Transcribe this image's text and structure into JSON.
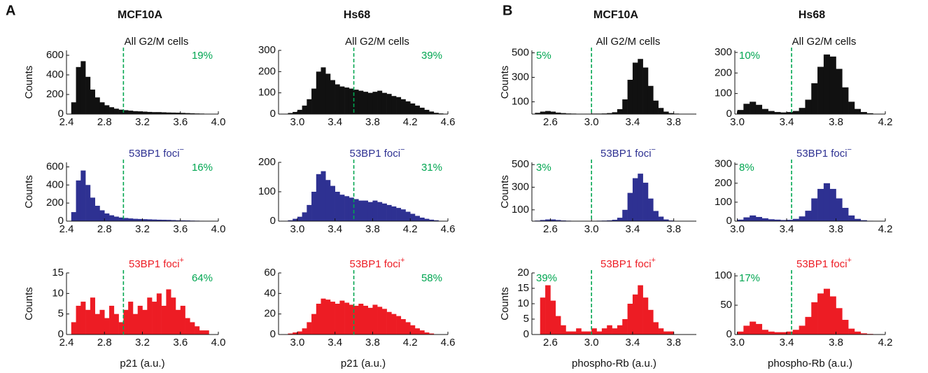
{
  "panels": [
    {
      "label": "A",
      "columns": [
        "MCF10A",
        "Hs68"
      ],
      "xlabel": "p21 (a.u.)",
      "ylabel": "Counts"
    },
    {
      "label": "B",
      "columns": [
        "MCF10A",
        "Hs68"
      ],
      "xlabel": "phospho-Rb (a.u.)",
      "ylabel": "Counts"
    }
  ],
  "chart_data": [
    {
      "type": "histogram",
      "title": "All G2/M cells",
      "annotation": "19%",
      "annotation_corner": "right",
      "color": "#111111",
      "threshold": 3.0,
      "threshold_color": "#00a651",
      "xlim": [
        2.4,
        4.0
      ],
      "xticks": [
        2.4,
        2.8,
        3.2,
        3.6,
        {
          "value": 4,
          "label": "4.0"
        }
      ],
      "ylim": [
        0,
        650
      ],
      "yticks": [
        0,
        200,
        400,
        600
      ],
      "bins": [
        2.45,
        2.5,
        2.55,
        2.6,
        2.65,
        2.7,
        2.75,
        2.8,
        2.85,
        2.9,
        2.95,
        3,
        3.05,
        3.1,
        3.15,
        3.2,
        3.25,
        3.3,
        3.35,
        3.4,
        3.45,
        3.5,
        3.55,
        3.6,
        3.65,
        3.7,
        3.75,
        3.8,
        3.85,
        3.9,
        3.95
      ],
      "counts": [
        120,
        480,
        540,
        380,
        250,
        170,
        120,
        90,
        70,
        55,
        45,
        40,
        35,
        30,
        28,
        25,
        22,
        20,
        20,
        18,
        16,
        15,
        14,
        12,
        10,
        8,
        6,
        5,
        3,
        2
      ]
    },
    {
      "type": "histogram",
      "title": "53BP1 foci",
      "title_sup": "−",
      "annotation": "16%",
      "annotation_corner": "right",
      "color": "#2e3192",
      "threshold": 3.0,
      "threshold_color": "#00a651",
      "xlim": [
        2.4,
        4.0
      ],
      "xticks": [
        2.4,
        2.8,
        3.2,
        3.6,
        {
          "value": 4,
          "label": "4.0"
        }
      ],
      "ylim": [
        0,
        650
      ],
      "yticks": [
        0,
        200,
        400,
        600
      ],
      "bins": [
        2.45,
        2.5,
        2.55,
        2.6,
        2.65,
        2.7,
        2.75,
        2.8,
        2.85,
        2.9,
        2.95,
        3,
        3.05,
        3.1,
        3.15,
        3.2,
        3.25,
        3.3,
        3.35,
        3.4,
        3.45,
        3.5,
        3.55,
        3.6,
        3.65,
        3.7,
        3.75,
        3.8,
        3.85,
        3.9,
        3.95
      ],
      "counts": [
        100,
        450,
        560,
        400,
        260,
        170,
        120,
        85,
        65,
        50,
        40,
        35,
        30,
        26,
        24,
        22,
        20,
        18,
        16,
        15,
        14,
        12,
        10,
        9,
        8,
        6,
        5,
        4,
        3,
        2
      ]
    },
    {
      "type": "histogram",
      "title": "53BP1 foci",
      "title_sup": "+",
      "annotation": "64%",
      "annotation_corner": "right",
      "color": "#ed1c24",
      "threshold": 3.0,
      "threshold_color": "#00a651",
      "xlim": [
        2.4,
        4.0
      ],
      "xticks": [
        2.4,
        2.8,
        3.2,
        3.6,
        {
          "value": 4,
          "label": "4.0"
        }
      ],
      "ylim": [
        0,
        15
      ],
      "yticks": [
        0,
        5,
        10,
        15
      ],
      "bins": [
        2.45,
        2.5,
        2.55,
        2.6,
        2.65,
        2.7,
        2.75,
        2.8,
        2.85,
        2.9,
        2.95,
        3,
        3.05,
        3.1,
        3.15,
        3.2,
        3.25,
        3.3,
        3.35,
        3.4,
        3.45,
        3.5,
        3.55,
        3.6,
        3.65,
        3.7,
        3.75,
        3.8,
        3.85,
        3.9,
        3.95
      ],
      "counts": [
        3,
        7,
        8,
        6,
        9,
        5,
        6,
        4,
        7,
        5,
        3,
        6,
        8,
        5,
        7,
        6,
        9,
        8,
        10,
        7,
        11,
        9,
        6,
        7,
        4,
        3,
        2,
        1,
        1,
        0
      ]
    },
    {
      "type": "histogram",
      "title": "All G2/M cells",
      "annotation": "39%",
      "annotation_corner": "right",
      "color": "#111111",
      "threshold": 3.6,
      "threshold_color": "#00a651",
      "xlim": [
        2.8,
        4.6
      ],
      "xticks": [
        {
          "value": 3,
          "label": "3.0"
        },
        3.4,
        3.8,
        4.2,
        4.6
      ],
      "ylim": [
        0,
        300
      ],
      "yticks": [
        0,
        100,
        200,
        300
      ],
      "bins": [
        2.9,
        2.95,
        3,
        3.05,
        3.1,
        3.15,
        3.2,
        3.25,
        3.3,
        3.35,
        3.4,
        3.45,
        3.5,
        3.55,
        3.6,
        3.65,
        3.7,
        3.75,
        3.8,
        3.85,
        3.9,
        3.95,
        4,
        4.05,
        4.1,
        4.15,
        4.2,
        4.25,
        4.3,
        4.35,
        4.4,
        4.45,
        4.5,
        4.55
      ],
      "counts": [
        5,
        10,
        20,
        40,
        70,
        120,
        200,
        220,
        190,
        160,
        140,
        130,
        125,
        120,
        115,
        110,
        105,
        100,
        105,
        110,
        100,
        95,
        85,
        80,
        70,
        60,
        50,
        40,
        30,
        20,
        12,
        6,
        3
      ]
    },
    {
      "type": "histogram",
      "title": "53BP1 foci",
      "title_sup": "−",
      "annotation": "31%",
      "annotation_corner": "right",
      "color": "#2e3192",
      "threshold": 3.6,
      "threshold_color": "#00a651",
      "xlim": [
        2.8,
        4.6
      ],
      "xticks": [
        {
          "value": 3,
          "label": "3.0"
        },
        3.4,
        3.8,
        4.2,
        4.6
      ],
      "ylim": [
        0,
        200
      ],
      "yticks": [
        0,
        100,
        200
      ],
      "bins": [
        2.9,
        2.95,
        3,
        3.05,
        3.1,
        3.15,
        3.2,
        3.25,
        3.3,
        3.35,
        3.4,
        3.45,
        3.5,
        3.55,
        3.6,
        3.65,
        3.7,
        3.75,
        3.8,
        3.85,
        3.9,
        3.95,
        4,
        4.05,
        4.1,
        4.15,
        4.2,
        4.25,
        4.3,
        4.35,
        4.4,
        4.45,
        4.5,
        4.55
      ],
      "counts": [
        3,
        8,
        15,
        30,
        55,
        100,
        160,
        170,
        140,
        120,
        100,
        90,
        85,
        80,
        75,
        70,
        70,
        65,
        70,
        65,
        60,
        55,
        50,
        45,
        40,
        32,
        25,
        18,
        12,
        8,
        5,
        3,
        1
      ]
    },
    {
      "type": "histogram",
      "title": "53BP1 foci",
      "title_sup": "+",
      "annotation": "58%",
      "annotation_corner": "right",
      "color": "#ed1c24",
      "threshold": 3.6,
      "threshold_color": "#00a651",
      "xlim": [
        2.8,
        4.6
      ],
      "xticks": [
        {
          "value": 3,
          "label": "3.0"
        },
        3.4,
        3.8,
        4.2,
        4.6
      ],
      "ylim": [
        0,
        60
      ],
      "yticks": [
        0,
        20,
        40,
        60
      ],
      "bins": [
        2.9,
        2.95,
        3,
        3.05,
        3.1,
        3.15,
        3.2,
        3.25,
        3.3,
        3.35,
        3.4,
        3.45,
        3.5,
        3.55,
        3.6,
        3.65,
        3.7,
        3.75,
        3.8,
        3.85,
        3.9,
        3.95,
        4,
        4.05,
        4.1,
        4.15,
        4.2,
        4.25,
        4.3,
        4.35,
        4.4,
        4.45,
        4.5,
        4.55
      ],
      "counts": [
        1,
        2,
        3,
        6,
        12,
        20,
        30,
        35,
        34,
        32,
        30,
        33,
        31,
        29,
        28,
        30,
        28,
        26,
        29,
        27,
        25,
        22,
        20,
        18,
        15,
        12,
        9,
        6,
        4,
        2,
        1,
        0,
        0
      ]
    },
    {
      "type": "histogram",
      "title": "All G2/M cells",
      "annotation": "5%",
      "annotation_corner": "left",
      "color": "#111111",
      "threshold": 3.0,
      "threshold_color": "#00a651",
      "xlim": [
        2.42,
        4.02
      ],
      "xticks": [
        2.6,
        {
          "value": 3,
          "label": "3.0"
        },
        3.4,
        3.8
      ],
      "ylim": [
        0,
        520
      ],
      "yticks": [
        100,
        300,
        500
      ],
      "bins": [
        2.45,
        2.5,
        2.55,
        2.6,
        2.65,
        2.7,
        2.75,
        2.8,
        2.85,
        2.9,
        2.95,
        3,
        3.05,
        3.1,
        3.15,
        3.2,
        3.25,
        3.3,
        3.35,
        3.4,
        3.45,
        3.5,
        3.55,
        3.6,
        3.65,
        3.7,
        3.75,
        3.8,
        3.85,
        3.9,
        3.95
      ],
      "counts": [
        10,
        20,
        25,
        20,
        12,
        8,
        5,
        4,
        3,
        3,
        3,
        4,
        4,
        5,
        8,
        15,
        40,
        120,
        280,
        420,
        450,
        380,
        230,
        110,
        50,
        20,
        8,
        4,
        2,
        1
      ]
    },
    {
      "type": "histogram",
      "title": "53BP1 foci",
      "title_sup": "−",
      "annotation": "3%",
      "annotation_corner": "left",
      "color": "#2e3192",
      "threshold": 3.0,
      "threshold_color": "#00a651",
      "xlim": [
        2.42,
        4.02
      ],
      "xticks": [
        2.6,
        {
          "value": 3,
          "label": "3.0"
        },
        3.4,
        3.8
      ],
      "ylim": [
        0,
        520
      ],
      "yticks": [
        100,
        300,
        500
      ],
      "bins": [
        2.45,
        2.5,
        2.55,
        2.6,
        2.65,
        2.7,
        2.75,
        2.8,
        2.85,
        2.9,
        2.95,
        3,
        3.05,
        3.1,
        3.15,
        3.2,
        3.25,
        3.3,
        3.35,
        3.4,
        3.45,
        3.5,
        3.55,
        3.6,
        3.65,
        3.7,
        3.75,
        3.8,
        3.85,
        3.9,
        3.95
      ],
      "counts": [
        5,
        10,
        15,
        15,
        10,
        6,
        4,
        3,
        3,
        3,
        3,
        3,
        4,
        5,
        7,
        12,
        30,
        100,
        250,
        380,
        420,
        340,
        200,
        90,
        40,
        15,
        6,
        3,
        1,
        1
      ]
    },
    {
      "type": "histogram",
      "title": "53BP1 foci",
      "title_sup": "+",
      "annotation": "39%",
      "annotation_corner": "left",
      "color": "#ed1c24",
      "threshold": 3.0,
      "threshold_color": "#00a651",
      "xlim": [
        2.42,
        4.02
      ],
      "xticks": [
        2.6,
        {
          "value": 3,
          "label": "3.0"
        },
        3.4,
        3.8
      ],
      "ylim": [
        0,
        20
      ],
      "yticks": [
        0,
        5,
        10,
        15,
        20
      ],
      "bins": [
        2.45,
        2.5,
        2.55,
        2.6,
        2.65,
        2.7,
        2.75,
        2.8,
        2.85,
        2.9,
        2.95,
        3,
        3.05,
        3.1,
        3.15,
        3.2,
        3.25,
        3.3,
        3.35,
        3.4,
        3.45,
        3.5,
        3.55,
        3.6,
        3.65,
        3.7,
        3.75,
        3.8,
        3.85,
        3.9,
        3.95
      ],
      "counts": [
        0,
        12,
        16,
        11,
        6,
        3,
        1,
        1,
        2,
        1,
        1,
        2,
        1,
        2,
        3,
        2,
        3,
        5,
        10,
        13,
        16,
        12,
        8,
        4,
        2,
        1,
        1,
        0,
        0,
        0
      ]
    },
    {
      "type": "histogram",
      "title": "All G2/M cells",
      "annotation": "10%",
      "annotation_corner": "left",
      "color": "#111111",
      "threshold": 3.44,
      "threshold_color": "#00a651",
      "xlim": [
        2.98,
        4.2
      ],
      "xticks": [
        {
          "value": 3,
          "label": "3.0"
        },
        3.4,
        3.8,
        4.2
      ],
      "ylim": [
        0,
        310
      ],
      "yticks": [
        0,
        100,
        200,
        300
      ],
      "bins": [
        3,
        3.05,
        3.1,
        3.15,
        3.2,
        3.25,
        3.3,
        3.35,
        3.4,
        3.45,
        3.5,
        3.55,
        3.6,
        3.65,
        3.7,
        3.75,
        3.8,
        3.85,
        3.9,
        3.95,
        4,
        4.05,
        4.1,
        4.15
      ],
      "counts": [
        20,
        50,
        60,
        45,
        25,
        15,
        10,
        8,
        10,
        15,
        30,
        70,
        150,
        230,
        290,
        280,
        220,
        130,
        60,
        25,
        10,
        4,
        1
      ]
    },
    {
      "type": "histogram",
      "title": "53BP1 foci",
      "title_sup": "−",
      "annotation": "8%",
      "annotation_corner": "left",
      "color": "#2e3192",
      "threshold": 3.44,
      "threshold_color": "#00a651",
      "xlim": [
        2.98,
        4.2
      ],
      "xticks": [
        {
          "value": 3,
          "label": "3.0"
        },
        3.4,
        3.8,
        4.2
      ],
      "ylim": [
        0,
        310
      ],
      "yticks": [
        0,
        100,
        200,
        300
      ],
      "bins": [
        3,
        3.05,
        3.1,
        3.15,
        3.2,
        3.25,
        3.3,
        3.35,
        3.4,
        3.45,
        3.5,
        3.55,
        3.6,
        3.65,
        3.7,
        3.75,
        3.8,
        3.85,
        3.9,
        3.95,
        4,
        4.05,
        4.1,
        4.15
      ],
      "counts": [
        8,
        20,
        30,
        22,
        15,
        10,
        8,
        6,
        7,
        12,
        25,
        55,
        120,
        170,
        200,
        170,
        120,
        70,
        30,
        12,
        5,
        2,
        1
      ]
    },
    {
      "type": "histogram",
      "title": "53BP1 foci",
      "title_sup": "+",
      "annotation": "17%",
      "annotation_corner": "left",
      "color": "#ed1c24",
      "threshold": 3.44,
      "threshold_color": "#00a651",
      "xlim": [
        2.98,
        4.2
      ],
      "xticks": [
        {
          "value": 3,
          "label": "3.0"
        },
        3.4,
        3.8,
        4.2
      ],
      "ylim": [
        0,
        105
      ],
      "yticks": [
        0,
        50,
        100
      ],
      "bins": [
        3,
        3.05,
        3.1,
        3.15,
        3.2,
        3.25,
        3.3,
        3.35,
        3.4,
        3.45,
        3.5,
        3.55,
        3.6,
        3.65,
        3.7,
        3.75,
        3.8,
        3.85,
        3.9,
        3.95,
        4,
        4.05,
        4.1,
        4.15
      ],
      "counts": [
        5,
        15,
        22,
        18,
        8,
        5,
        4,
        4,
        5,
        8,
        15,
        30,
        55,
        70,
        78,
        65,
        45,
        25,
        10,
        5,
        2,
        1,
        0
      ]
    }
  ]
}
